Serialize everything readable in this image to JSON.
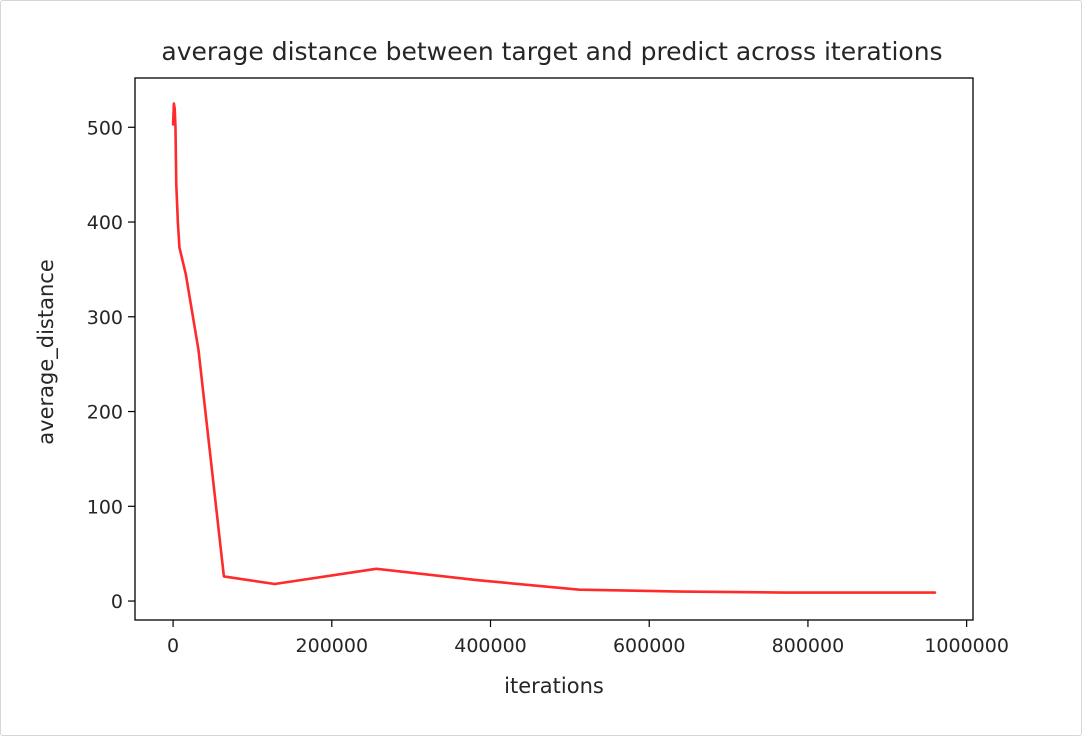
{
  "chart_data": {
    "type": "line",
    "title": "average distance between target and predict across iterations",
    "xlabel": "iterations",
    "ylabel": "average_distance",
    "xlim": [
      -48000,
      1008000
    ],
    "ylim": [
      -20,
      552
    ],
    "xticks": [
      0,
      200000,
      400000,
      600000,
      800000,
      1000000
    ],
    "xtick_labels": [
      "0",
      "200000",
      "400000",
      "600000",
      "800000",
      "1000000"
    ],
    "yticks": [
      0,
      100,
      200,
      300,
      400,
      500
    ],
    "ytick_labels": [
      "0",
      "100",
      "200",
      "300",
      "400",
      "500"
    ],
    "grid": false,
    "series": [
      {
        "color": "#ff2a2a",
        "x": [
          0,
          1000,
          2000,
          3000,
          4000,
          6000,
          8000,
          16000,
          32000,
          64000,
          128000,
          256000,
          384000,
          512000,
          640000,
          768000,
          896000,
          960000
        ],
        "y": [
          503,
          525,
          520,
          500,
          440,
          400,
          373,
          345,
          265,
          26,
          18,
          34,
          22,
          12,
          10,
          9,
          9,
          9
        ]
      }
    ]
  }
}
